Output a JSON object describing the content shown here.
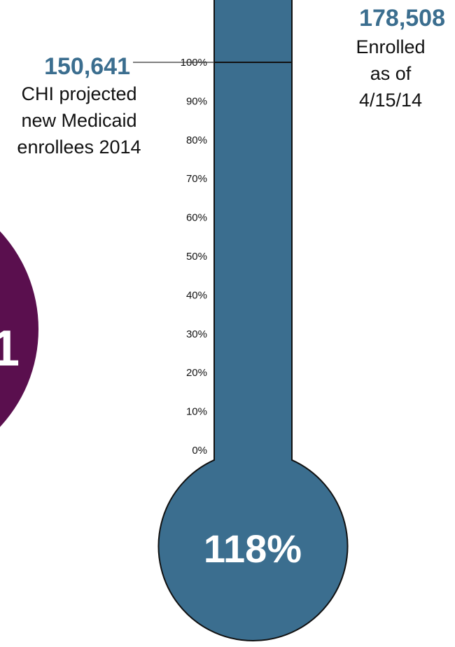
{
  "colors": {
    "thermometer_fill": "#3b6e8f",
    "accent_number": "#3b6e8f",
    "side_circle": "#5a0f4e",
    "outline": "#111111"
  },
  "side_circle": {
    "text": "1"
  },
  "chart_data": {
    "type": "bar",
    "style": "thermometer",
    "title": "",
    "ylabel": "",
    "ylim": [
      0,
      100
    ],
    "y_ticks": [
      "0%",
      "10%",
      "20%",
      "30%",
      "40%",
      "50%",
      "60%",
      "70%",
      "80%",
      "90%",
      "100%"
    ],
    "projected": {
      "value_label": "150,641",
      "value": 150641,
      "caption_lines": [
        "CHI projected",
        "new Medicaid",
        "enrollees 2014"
      ]
    },
    "enrolled": {
      "value_label": "178,508",
      "value": 178508,
      "caption_lines": [
        "Enrolled",
        "as of",
        "4/15/14"
      ]
    },
    "percent_label": "118%",
    "percent_value": 118
  }
}
